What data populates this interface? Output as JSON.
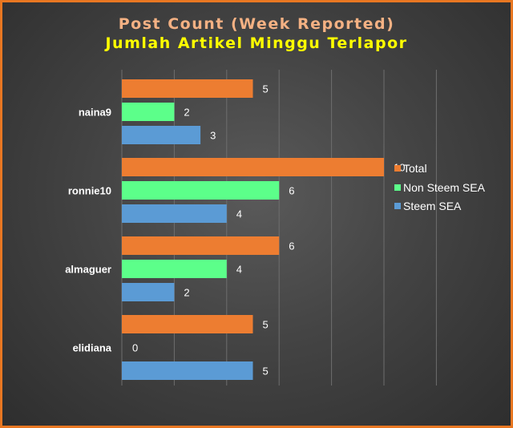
{
  "title": "Post Count (Week Reported)",
  "subtitle": "Jumlah Artikel Minggu Terlapor",
  "colors": {
    "Total": "#ed7d31",
    "Non Steem SEA": "#5cff8a",
    "Steem SEA": "#5b9bd5",
    "grid": "#6e6e6e",
    "border": "#e87722"
  },
  "chart_data": {
    "type": "bar",
    "orientation": "horizontal",
    "title": "Post Count (Week Reported)",
    "subtitle": "Jumlah Artikel Minggu Terlapor",
    "categories": [
      "naina9",
      "ronnie10",
      "almaguer",
      "elidiana"
    ],
    "series": [
      {
        "name": "Total",
        "values": [
          5,
          10,
          6,
          5
        ]
      },
      {
        "name": "Non Steem SEA",
        "values": [
          2,
          6,
          4,
          0
        ]
      },
      {
        "name": "Steem SEA",
        "values": [
          3,
          4,
          2,
          5
        ]
      }
    ],
    "xlim": [
      0,
      12
    ],
    "grid": true,
    "legend": "right"
  }
}
